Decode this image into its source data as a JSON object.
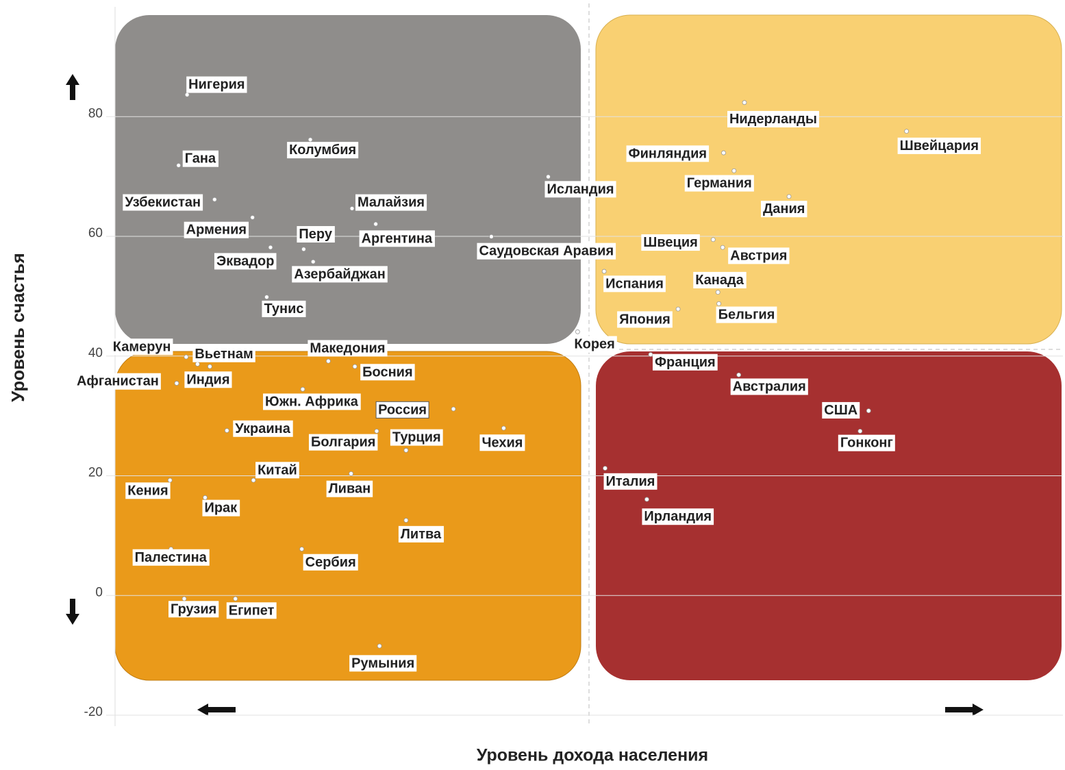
{
  "chart_data": {
    "type": "scatter",
    "xlabel": "Уровень дохода населения",
    "ylabel": "Уровень счастья",
    "xlim": [
      0,
      100
    ],
    "ylim": [
      -20,
      98
    ],
    "yticks": [
      -20,
      0,
      20,
      40,
      60,
      80
    ],
    "grid": true,
    "color": "#ffffff",
    "points": [
      {
        "label": "Нигерия",
        "x": 7.6,
        "y": 83.2
      },
      {
        "label": "Гана",
        "x": 6.7,
        "y": 71.4
      },
      {
        "label": "Колумбия",
        "x": 20.6,
        "y": 75.7
      },
      {
        "label": "Узбекистан",
        "x": 10.5,
        "y": 65.7
      },
      {
        "label": "Малайзия",
        "x": 25.0,
        "y": 64.2
      },
      {
        "label": "Армения",
        "x": 14.5,
        "y": 62.7
      },
      {
        "label": "Аргентина",
        "x": 27.5,
        "y": 61.6
      },
      {
        "label": "Перу",
        "x": 19.9,
        "y": 57.4
      },
      {
        "label": "Эквадор",
        "x": 16.4,
        "y": 57.7
      },
      {
        "label": "Азербайджан",
        "x": 20.9,
        "y": 55.3
      },
      {
        "label": "Тунис",
        "x": 16.0,
        "y": 49.4
      },
      {
        "label": "Исландия",
        "x": 45.7,
        "y": 69.5
      },
      {
        "label": "Саудовская Аравия",
        "x": 39.7,
        "y": 59.5
      },
      {
        "label": "Нидерланды",
        "x": 66.4,
        "y": 81.9
      },
      {
        "label": "Швейцария",
        "x": 83.5,
        "y": 77.1
      },
      {
        "label": "Финляндия",
        "x": 64.2,
        "y": 73.5
      },
      {
        "label": "Германия",
        "x": 65.3,
        "y": 70.5
      },
      {
        "label": "Дания",
        "x": 71.1,
        "y": 66.2
      },
      {
        "label": "Швеция",
        "x": 63.1,
        "y": 59.0
      },
      {
        "label": "Австрия",
        "x": 64.1,
        "y": 57.7
      },
      {
        "label": "Испания",
        "x": 51.6,
        "y": 53.7
      },
      {
        "label": "Канада",
        "x": 63.6,
        "y": 50.2
      },
      {
        "label": "Бельгия",
        "x": 63.7,
        "y": 48.3
      },
      {
        "label": "Япония",
        "x": 59.4,
        "y": 47.4
      },
      {
        "label": "Корея",
        "x": 48.8,
        "y": 43.6
      },
      {
        "label": "Камерун",
        "x": 7.5,
        "y": 39.4
      },
      {
        "label": "Вьетнам",
        "x": 8.7,
        "y": 38.2
      },
      {
        "label": "Македония",
        "x": 22.5,
        "y": 38.7
      },
      {
        "label": "Босния",
        "x": 25.3,
        "y": 37.8
      },
      {
        "label": "Индия",
        "x": 10.0,
        "y": 37.8
      },
      {
        "label": "Афганистан",
        "x": 6.5,
        "y": 35.0
      },
      {
        "label": "Южн. Африка",
        "x": 19.8,
        "y": 34.0
      },
      {
        "label": "Россия",
        "x": 35.7,
        "y": 30.7
      },
      {
        "label": "Украина",
        "x": 11.8,
        "y": 27.1
      },
      {
        "label": "Болгария",
        "x": 27.6,
        "y": 27.0
      },
      {
        "label": "Турция",
        "x": 30.7,
        "y": 23.8
      },
      {
        "label": "Чехия",
        "x": 41.0,
        "y": 27.5
      },
      {
        "label": "Китай",
        "x": 14.6,
        "y": 18.8
      },
      {
        "label": "Ливан",
        "x": 24.9,
        "y": 19.9
      },
      {
        "label": "Кения",
        "x": 5.8,
        "y": 18.8
      },
      {
        "label": "Ирак",
        "x": 9.5,
        "y": 15.9
      },
      {
        "label": "Литва",
        "x": 30.7,
        "y": 12.1
      },
      {
        "label": "Палестина",
        "x": 5.9,
        "y": 7.3
      },
      {
        "label": "Сербия",
        "x": 19.7,
        "y": 7.3
      },
      {
        "label": "Грузия",
        "x": 7.3,
        "y": -1.0
      },
      {
        "label": "Египет",
        "x": 12.7,
        "y": -1.0
      },
      {
        "label": "Румыния",
        "x": 27.9,
        "y": -8.9
      },
      {
        "label": "Франция",
        "x": 56.5,
        "y": 39.8
      },
      {
        "label": "Австралия",
        "x": 65.8,
        "y": 36.4
      },
      {
        "label": "США",
        "x": 79.5,
        "y": 30.4
      },
      {
        "label": "Гонконг",
        "x": 78.6,
        "y": 27.0
      },
      {
        "label": "Италия",
        "x": 51.7,
        "y": 20.8
      },
      {
        "label": "Ирландия",
        "x": 56.1,
        "y": 15.6
      }
    ]
  }
}
